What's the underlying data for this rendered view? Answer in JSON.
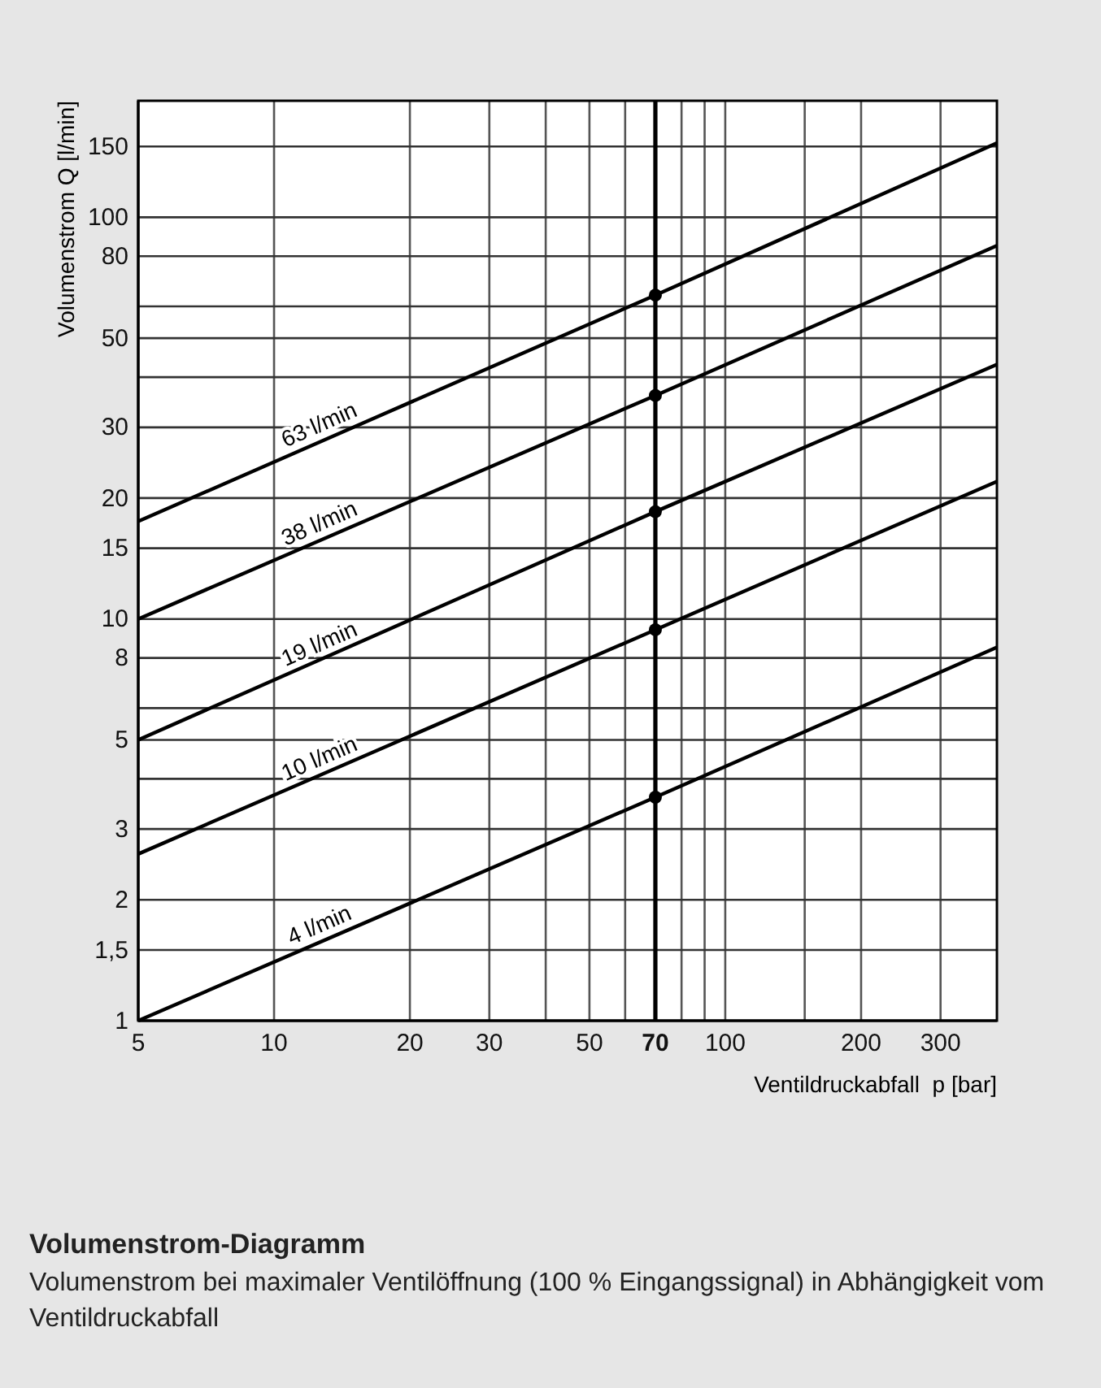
{
  "chart_data": {
    "type": "line",
    "title": "Volumenstrom-Diagramm",
    "subtitle": "Volumenstrom bei maximaler Ventilöffnung (100 % Eingangssignal) in Abhängigkeit vom Ventildruckabfall",
    "xlabel": "Ventildruckabfall  p [bar]",
    "ylabel": "Volumenstrom Q [l/min]",
    "log": "xy",
    "xlim": [
      5,
      400
    ],
    "ylim": [
      1,
      195
    ],
    "xticks": [
      5,
      10,
      20,
      30,
      {
        "value": 40,
        "label": null
      },
      50,
      {
        "value": 60,
        "label": null
      },
      70,
      {
        "value": 80,
        "label": null
      },
      {
        "value": 90,
        "label": null
      },
      100,
      {
        "value": 150,
        "label": null
      },
      200,
      300
    ],
    "yticks": [
      1,
      {
        "value": 1.5,
        "label": "1,5"
      },
      2,
      3,
      {
        "value": 4,
        "label": null
      },
      5,
      {
        "value": 6,
        "label": null
      },
      8,
      10,
      15,
      20,
      30,
      {
        "value": 40,
        "label": null
      },
      50,
      {
        "value": 60,
        "label": null
      },
      80,
      100,
      150
    ],
    "grid": true,
    "line_style": "solid",
    "ref_lines": [
      {
        "axis": "x",
        "value": 70,
        "color": "#000000"
      }
    ],
    "series": [
      {
        "name": "63 l/min",
        "color": "#000000",
        "x": [
          5,
          70,
          400
        ],
        "values": [
          17.5,
          64,
          153
        ],
        "marker": "none"
      },
      {
        "name": "38 l/min",
        "color": "#000000",
        "x": [
          5,
          70,
          400
        ],
        "values": [
          10,
          36,
          85
        ],
        "marker": "none"
      },
      {
        "name": "19 l/min",
        "color": "#000000",
        "x": [
          5,
          70,
          400
        ],
        "values": [
          5,
          18.5,
          43
        ],
        "marker": "none"
      },
      {
        "name": "10 l/min",
        "color": "#000000",
        "x": [
          5,
          70,
          400
        ],
        "values": [
          2.6,
          9.4,
          22
        ],
        "marker": "none"
      },
      {
        "name": "4 l/min",
        "color": "#000000",
        "x": [
          5,
          70,
          400
        ],
        "values": [
          1,
          3.6,
          8.5
        ],
        "marker": "none"
      },
      {
        "type": "scatter",
        "color": "#000000",
        "x": [
          70,
          70,
          70,
          70,
          70
        ],
        "values": [
          64,
          36,
          18.5,
          9.4,
          3.6
        ],
        "marker": "circle"
      }
    ]
  }
}
